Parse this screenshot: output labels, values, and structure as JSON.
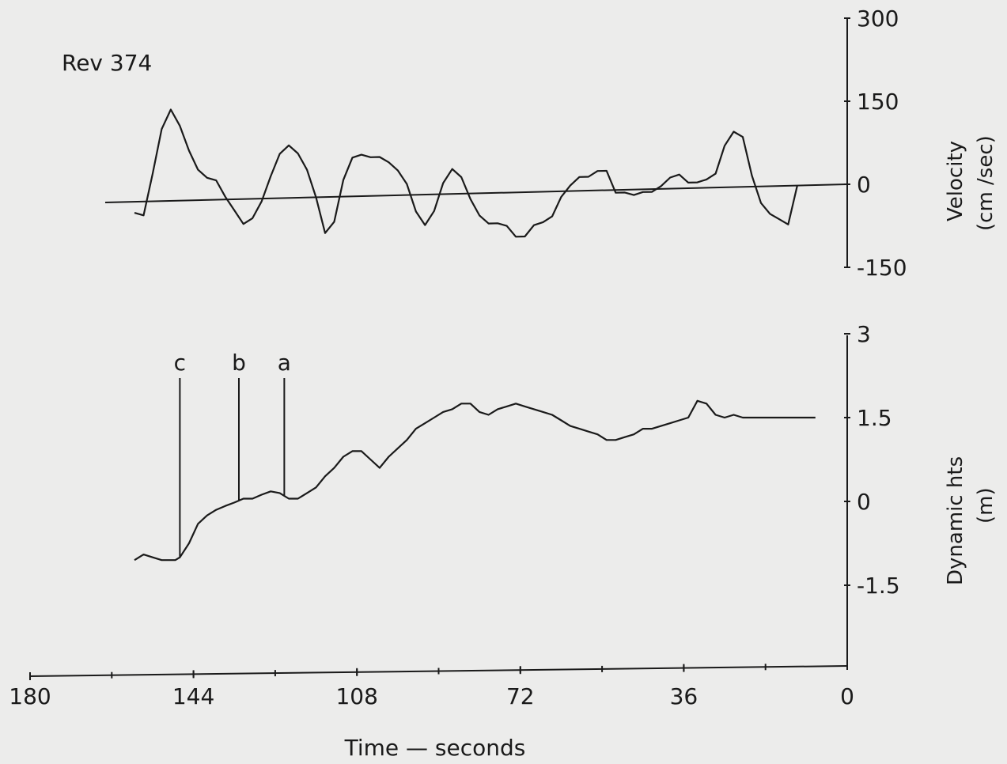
{
  "chart_data": [
    {
      "type": "line",
      "title": "Rev 374",
      "ylabel_line1": "Velocity",
      "ylabel_line2": "(cm /sec)",
      "ylim": [
        -150,
        300
      ],
      "yticks": [
        "300",
        "150",
        "0",
        "-150"
      ],
      "zero_reference": "sloping baseline",
      "series": [
        {
          "x": [
            157,
            155,
            153,
            151,
            149,
            147,
            145,
            143,
            141,
            139,
            137,
            135,
            133,
            131,
            129,
            127,
            125,
            123,
            121,
            119,
            117,
            115,
            113,
            111,
            109,
            107,
            105,
            103,
            101,
            99,
            97,
            95,
            93,
            91,
            89,
            87,
            85,
            83,
            81,
            79,
            77,
            75,
            73,
            71,
            69,
            67,
            65,
            63,
            61,
            59,
            57,
            55,
            53,
            51,
            49,
            47,
            45,
            43,
            41,
            39,
            37,
            35,
            33,
            31,
            29,
            27,
            25,
            23,
            21,
            19,
            17,
            15,
            13,
            11
          ],
          "y": [
            -20,
            -25,
            50,
            130,
            165,
            135,
            90,
            55,
            40,
            35,
            5,
            -20,
            -45,
            -35,
            -5,
            40,
            80,
            95,
            80,
            50,
            0,
            -65,
            -45,
            30,
            70,
            75,
            70,
            70,
            60,
            45,
            20,
            -30,
            -55,
            -30,
            20,
            45,
            30,
            -10,
            -40,
            -55,
            -55,
            -60,
            -80,
            -80,
            -60,
            -55,
            -45,
            -10,
            10,
            25,
            25,
            35,
            35,
            -5,
            -5,
            -10,
            -5,
            -5,
            5,
            20,
            25,
            10,
            10,
            15,
            25,
            75,
            100,
            90,
            20,
            -30,
            -50,
            -60,
            -70,
            0
          ]
        }
      ]
    },
    {
      "type": "line",
      "ylabel_line1": "Dynamic  hts",
      "ylabel_line2": "(m)",
      "ylim": [
        -3,
        3
      ],
      "yticks": [
        "3",
        "1.5",
        "0",
        "-1.5"
      ],
      "xlim": [
        180,
        0
      ],
      "xlabel": "Time — seconds",
      "xticks": [
        "180",
        "144",
        "108",
        "72",
        "36",
        "0"
      ],
      "markers": [
        {
          "label": "c",
          "x": 147
        },
        {
          "label": "b",
          "x": 134
        },
        {
          "label": "a",
          "x": 124
        }
      ],
      "series": [
        {
          "x": [
            157,
            155,
            153,
            151,
            149,
            148,
            147,
            145,
            143,
            141,
            139,
            137,
            135,
            133,
            131,
            129,
            127,
            125,
            123,
            121,
            119,
            117,
            115,
            113,
            111,
            109,
            107,
            105,
            103,
            101,
            99,
            97,
            95,
            93,
            91,
            89,
            87,
            85,
            83,
            81,
            79,
            77,
            75,
            73,
            71,
            69,
            67,
            65,
            63,
            61,
            59,
            57,
            55,
            53,
            51,
            49,
            47,
            45,
            43,
            41,
            39,
            37,
            35,
            33,
            31,
            29,
            27,
            25,
            23,
            21,
            19,
            17,
            15,
            13,
            11,
            9,
            7
          ],
          "y": [
            -1.05,
            -0.95,
            -1.0,
            -1.05,
            -1.05,
            -1.05,
            -1.0,
            -0.75,
            -0.4,
            -0.25,
            -0.15,
            -0.08,
            -0.02,
            0.05,
            0.05,
            0.12,
            0.18,
            0.15,
            0.05,
            0.05,
            0.15,
            0.25,
            0.45,
            0.6,
            0.8,
            0.9,
            0.9,
            0.75,
            0.6,
            0.8,
            0.95,
            1.1,
            1.3,
            1.4,
            1.5,
            1.6,
            1.65,
            1.75,
            1.75,
            1.6,
            1.55,
            1.65,
            1.7,
            1.75,
            1.7,
            1.65,
            1.6,
            1.55,
            1.45,
            1.35,
            1.3,
            1.25,
            1.2,
            1.1,
            1.1,
            1.15,
            1.2,
            1.3,
            1.3,
            1.35,
            1.4,
            1.45,
            1.5,
            1.8,
            1.75,
            1.55,
            1.5,
            1.55,
            1.5,
            1.5,
            1.5,
            1.5,
            1.5,
            1.5,
            1.5,
            1.5,
            1.5
          ]
        }
      ]
    }
  ]
}
